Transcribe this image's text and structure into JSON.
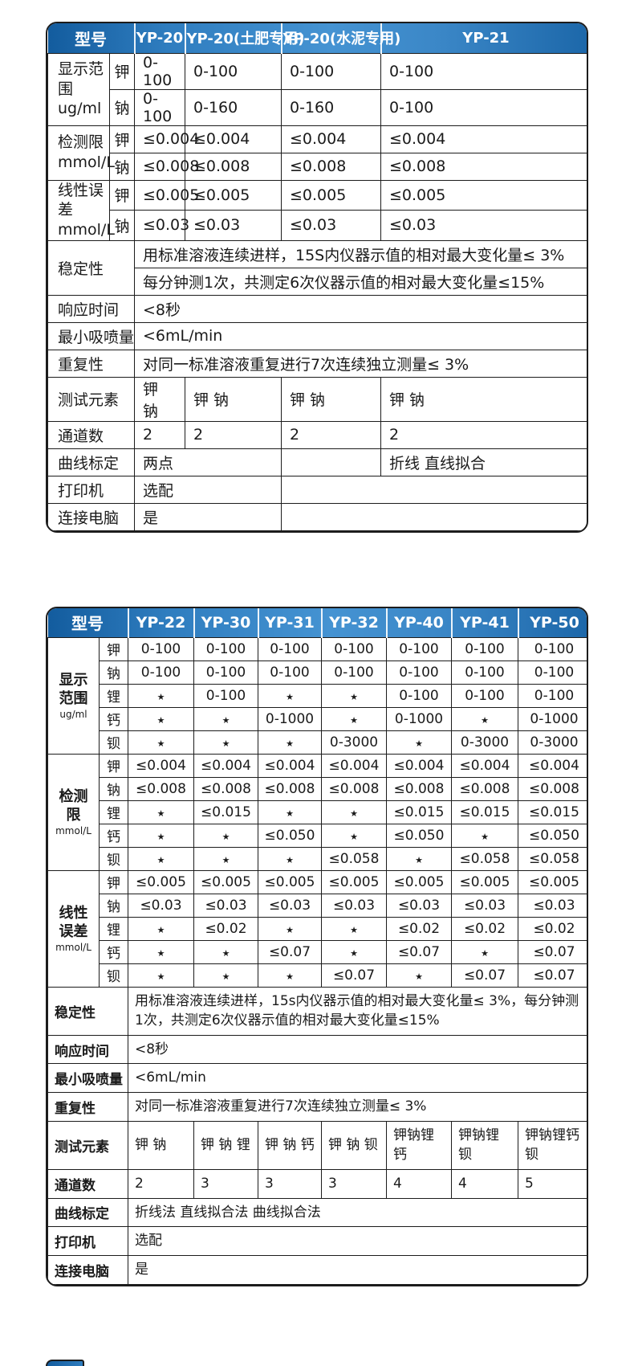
{
  "colors": {
    "header_blue_dark": "#135c9e",
    "header_blue_light": "#4593d2",
    "border": "#1c1c1c",
    "header_text": "#ffffff",
    "body_text": "#1a1a1a"
  },
  "table1": {
    "header": {
      "label": "型号",
      "models": [
        "YP-20",
        "YP-20(土肥专用)",
        "YP-20(水泥专用)",
        "YP-21"
      ]
    },
    "rows": [
      {
        "g": {
          "t": "显示范围",
          "u": "ug/ml",
          "rs": 2,
          "cs": 1
        },
        "e": "钾",
        "c": [
          "0-100",
          "0-100",
          "0-100",
          "0-100"
        ]
      },
      {
        "e": "钠",
        "c": [
          "0-100",
          "0-160",
          "0-160",
          "0-100"
        ]
      },
      {
        "g": {
          "t": "检测限",
          "u": "mmol/L",
          "rs": 2,
          "cs": 1
        },
        "e": "钾",
        "c": [
          "≤0.004",
          "≤0.004",
          "≤0.004",
          "≤0.004"
        ]
      },
      {
        "e": "钠",
        "c": [
          "≤0.008",
          "≤0.008",
          "≤0.008",
          "≤0.008"
        ]
      },
      {
        "g": {
          "t": "线性误差",
          "u": "mmol/L",
          "rs": 2,
          "cs": 1
        },
        "e": "钾",
        "c": [
          "≤0.005",
          "≤0.005",
          "≤0.005",
          "≤0.005"
        ]
      },
      {
        "e": "钠",
        "c": [
          "≤0.03",
          "≤0.03",
          "≤0.03",
          "≤0.03"
        ]
      },
      {
        "l": "稳定性",
        "lrs": 2,
        "c": [
          {
            "t": "用标准溶液连续进样，15S内仪器示值的相对最大变化量≤ 3%",
            "s": 4
          }
        ]
      },
      {
        "c": [
          {
            "t": "每分钟测1次，共测定6次仪器示值的相对最大变化量≤15%",
            "s": 4
          }
        ]
      },
      {
        "l": "响应时间",
        "c": [
          {
            "t": "<8秒",
            "s": 4
          }
        ]
      },
      {
        "l": "最小吸喷量",
        "c": [
          {
            "t": "<6mL/min",
            "s": 4
          }
        ]
      },
      {
        "l": "重复性",
        "c": [
          {
            "t": "对同一标准溶液重复进行7次连续独立测量≤ 3%",
            "s": 4
          }
        ]
      },
      {
        "l": "测试元素",
        "c": [
          "钾 钠",
          "钾 钠",
          "钾 钠",
          "钾 钠"
        ]
      },
      {
        "l": "通道数",
        "c": [
          "2",
          "2",
          "2",
          "2"
        ]
      },
      {
        "l": "曲线标定",
        "c": [
          {
            "t": "两点",
            "s": 2
          },
          {
            "t": "",
            "s": 1
          },
          {
            "t": "折线 直线拟合",
            "s": 1
          }
        ]
      },
      {
        "l": "打印机",
        "c": [
          {
            "t": "选配",
            "s": 2
          },
          {
            "t": "",
            "s": 2
          }
        ]
      },
      {
        "l": "连接电脑",
        "c": [
          {
            "t": "是",
            "s": 2
          },
          {
            "t": "",
            "s": 2
          }
        ]
      }
    ]
  },
  "table2": {
    "header": {
      "label": "型号",
      "models": [
        "YP-22",
        "YP-30",
        "YP-31",
        "YP-32",
        "YP-40",
        "YP-41",
        "YP-50"
      ]
    },
    "rows": [
      {
        "g": {
          "t": "显示\n范围",
          "u": "ug/ml",
          "rs": 5,
          "cs": 1
        },
        "e": "钾",
        "c": [
          "0-100",
          "0-100",
          "0-100",
          "0-100",
          "0-100",
          "0-100",
          "0-100"
        ]
      },
      {
        "e": "钠",
        "c": [
          "0-100",
          "0-100",
          "0-100",
          "0-100",
          "0-100",
          "0-100",
          "0-100"
        ]
      },
      {
        "e": "锂",
        "c": [
          "★",
          "0-100",
          "★",
          "★",
          "0-100",
          "0-100",
          "0-100"
        ]
      },
      {
        "e": "钙",
        "c": [
          "★",
          "★",
          "0-1000",
          "★",
          "0-1000",
          "★",
          "0-1000"
        ]
      },
      {
        "e": "钡",
        "c": [
          "★",
          "★",
          "★",
          "0-3000",
          "★",
          "0-3000",
          "0-3000"
        ]
      },
      {
        "g": {
          "t": "检测\n限",
          "u": "mmol/L",
          "rs": 5,
          "cs": 1
        },
        "e": "钾",
        "c": [
          "≤0.004",
          "≤0.004",
          "≤0.004",
          "≤0.004",
          "≤0.004",
          "≤0.004",
          "≤0.004"
        ]
      },
      {
        "e": "钠",
        "c": [
          "≤0.008",
          "≤0.008",
          "≤0.008",
          "≤0.008",
          "≤0.008",
          "≤0.008",
          "≤0.008"
        ]
      },
      {
        "e": "锂",
        "c": [
          "★",
          "≤0.015",
          "★",
          "★",
          "≤0.015",
          "≤0.015",
          "≤0.015"
        ]
      },
      {
        "e": "钙",
        "c": [
          "★",
          "★",
          "≤0.050",
          "★",
          "≤0.050",
          "★",
          "≤0.050"
        ]
      },
      {
        "e": "钡",
        "c": [
          "★",
          "★",
          "★",
          "≤0.058",
          "★",
          "≤0.058",
          "≤0.058"
        ]
      },
      {
        "g": {
          "t": "线性\n误差",
          "u": "mmol/L",
          "rs": 5,
          "cs": 1
        },
        "e": "钾",
        "c": [
          "≤0.005",
          "≤0.005",
          "≤0.005",
          "≤0.005",
          "≤0.005",
          "≤0.005",
          "≤0.005"
        ]
      },
      {
        "e": "钠",
        "c": [
          "≤0.03",
          "≤0.03",
          "≤0.03",
          "≤0.03",
          "≤0.03",
          "≤0.03",
          "≤0.03"
        ]
      },
      {
        "e": "锂",
        "c": [
          "★",
          "≤0.02",
          "★",
          "★",
          "≤0.02",
          "≤0.02",
          "≤0.02"
        ]
      },
      {
        "e": "钙",
        "c": [
          "★",
          "★",
          "≤0.07",
          "★",
          "≤0.07",
          "★",
          "≤0.07"
        ]
      },
      {
        "e": "钡",
        "c": [
          "★",
          "★",
          "★",
          "≤0.07",
          "★",
          "≤0.07",
          "≤0.07"
        ]
      },
      {
        "l": "稳定性",
        "c": [
          {
            "t": "用标准溶液连续进样，15s内仪器示值的相对最大变化量≤ 3%，每分钟测1次，共测定6次仪器示值的相对最大变化量≤15%",
            "s": 7
          }
        ]
      },
      {
        "l": "响应时间",
        "c": [
          {
            "t": "<8秒",
            "s": 7
          }
        ]
      },
      {
        "l": "最小吸喷量",
        "c": [
          {
            "t": "<6mL/min",
            "s": 7
          }
        ]
      },
      {
        "l": "重复性",
        "c": [
          {
            "t": "对同一标准溶液重复进行7次连续独立测量≤ 3%",
            "s": 7
          }
        ]
      },
      {
        "l": "测试元素",
        "c": [
          "钾 钠",
          "钾 钠 锂",
          "钾 钠 钙",
          "钾 钠 钡",
          "钾钠锂钙",
          "钾钠锂钡",
          "钾钠锂钙钡"
        ]
      },
      {
        "l": "通道数",
        "c": [
          "2",
          "3",
          "3",
          "3",
          "4",
          "4",
          "5"
        ]
      },
      {
        "l": "曲线标定",
        "c": [
          {
            "t": "折线法 直线拟合法 曲线拟合法",
            "s": 7
          }
        ]
      },
      {
        "l": "打印机",
        "c": [
          {
            "t": "选配",
            "s": 7
          }
        ]
      },
      {
        "l": "连接电脑",
        "c": [
          {
            "t": "是",
            "s": 7
          }
        ]
      }
    ]
  }
}
